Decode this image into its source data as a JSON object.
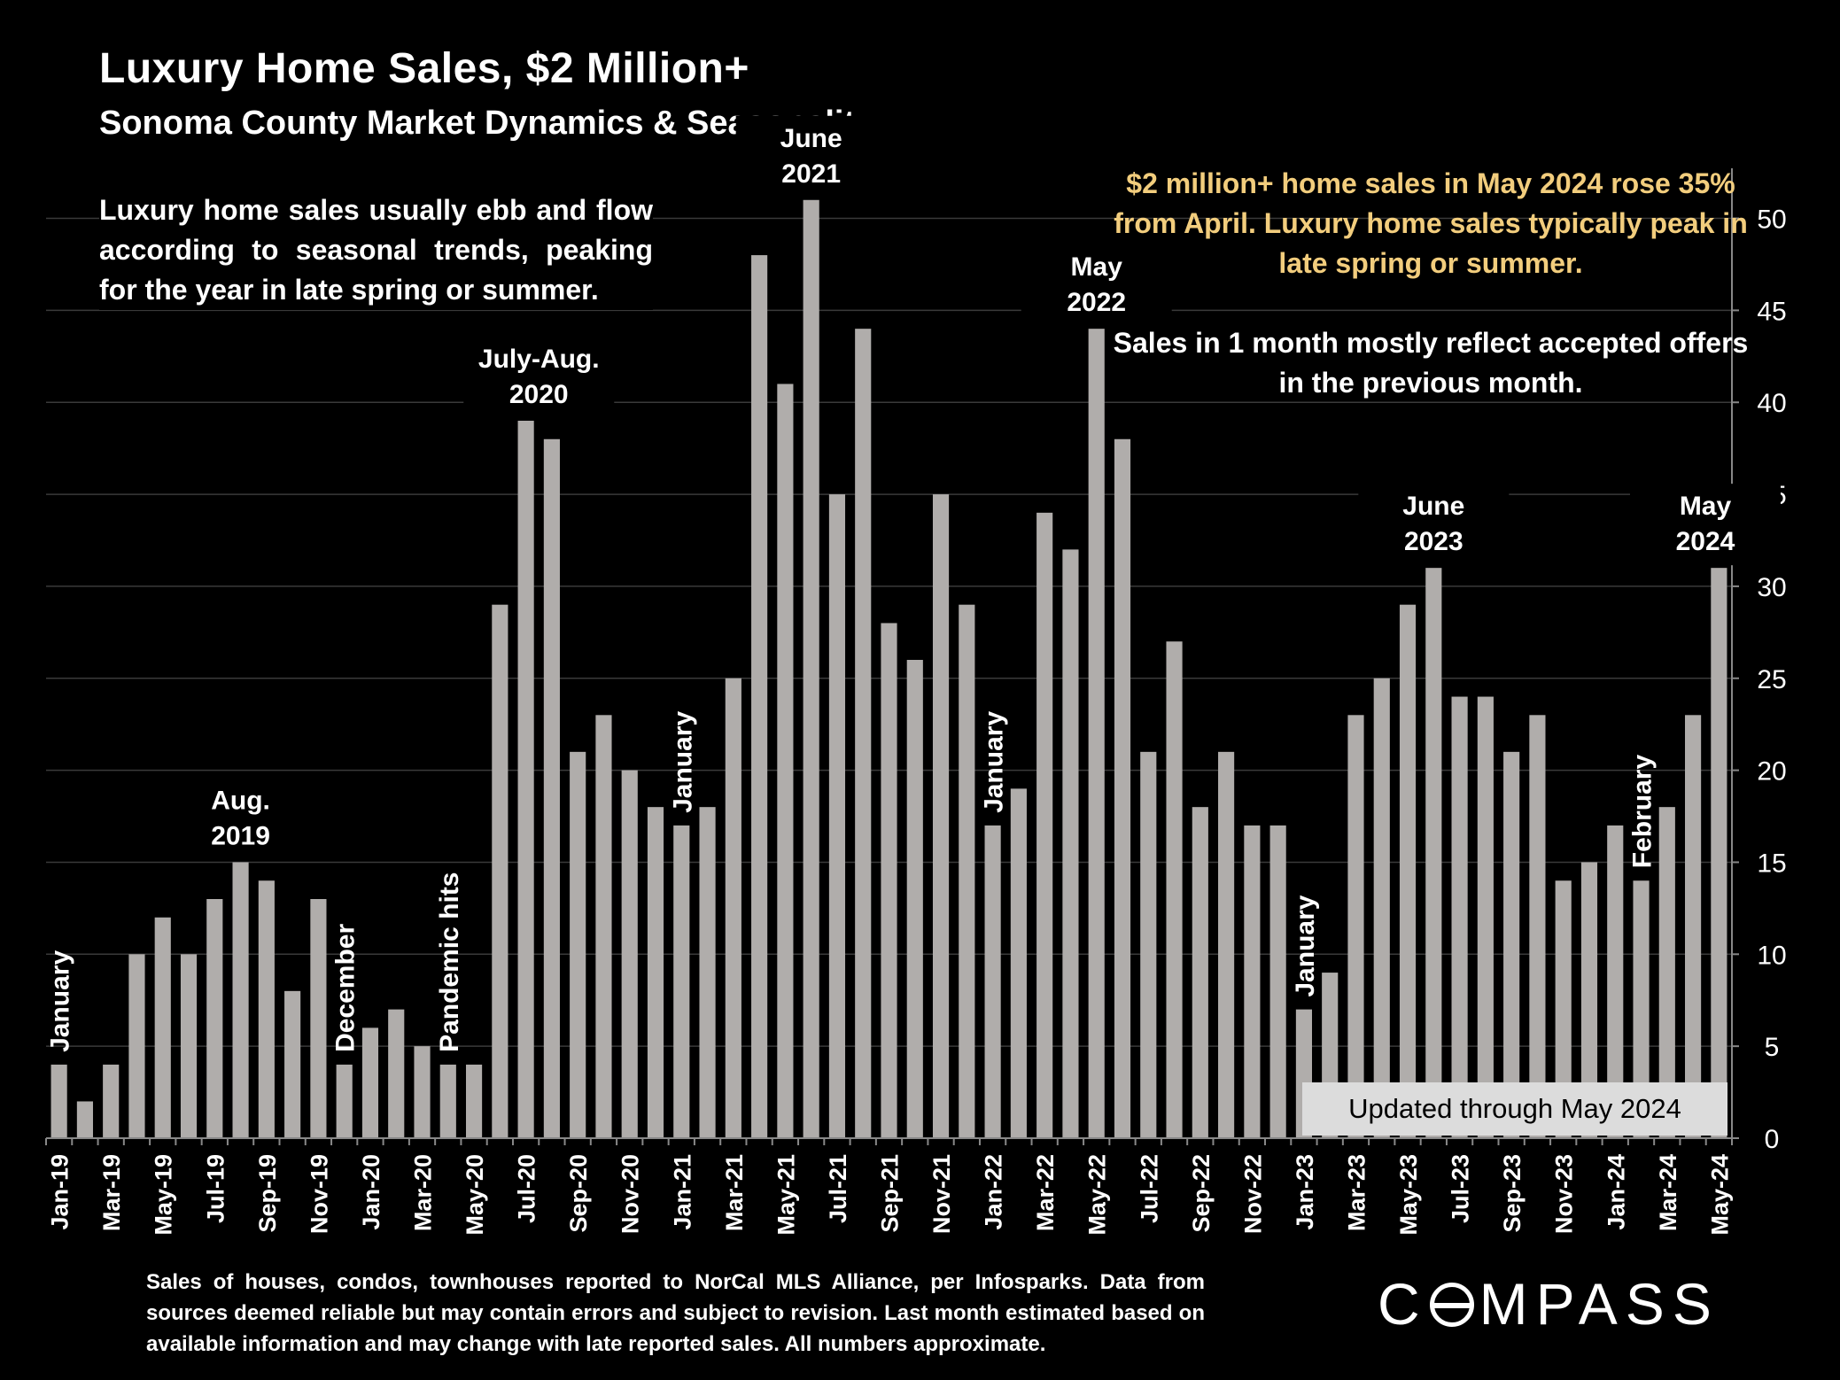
{
  "header": {
    "title": "Luxury Home Sales, $2 Million+",
    "subtitle": "Sonoma County Market Dynamics & Seasonality"
  },
  "description": "Luxury home sales usually ebb and flow according to seasonal trends, peaking for the year in late spring or summer.",
  "callout": {
    "highlight": "$2 million+ home sales in May 2024 rose 35% from April. Luxury home sales typically peak in late spring or summer.",
    "note": "Sales in 1 month mostly reflect accepted offers in the previous month."
  },
  "updated_badge": "Updated through May 2024",
  "footnote": "Sales of houses, condos, townhouses reported to NorCal MLS Alliance, per Infosparks. Data from sources deemed reliable but may contain errors and subject to revision. Last month estimated based on available information and may change with late reported sales. All numbers approximate.",
  "logo": {
    "text": "COMPASS",
    "icon": "compass-logo"
  },
  "colors": {
    "background": "#000000",
    "bar": "#b0adab",
    "highlight_text": "#f2cd7d",
    "grid": "#3a3a3a"
  },
  "chart_data": {
    "type": "bar",
    "categories": [
      "Jan-19",
      "Feb-19",
      "Mar-19",
      "Apr-19",
      "May-19",
      "Jun-19",
      "Jul-19",
      "Aug-19",
      "Sep-19",
      "Oct-19",
      "Nov-19",
      "Dec-19",
      "Jan-20",
      "Feb-20",
      "Mar-20",
      "Apr-20",
      "May-20",
      "Jun-20",
      "Jul-20",
      "Aug-20",
      "Sep-20",
      "Oct-20",
      "Nov-20",
      "Dec-20",
      "Jan-21",
      "Feb-21",
      "Mar-21",
      "Apr-21",
      "May-21",
      "Jun-21",
      "Jul-21",
      "Aug-21",
      "Sep-21",
      "Oct-21",
      "Nov-21",
      "Dec-21",
      "Jan-22",
      "Feb-22",
      "Mar-22",
      "Apr-22",
      "May-22",
      "Jun-22",
      "Jul-22",
      "Aug-22",
      "Sep-22",
      "Oct-22",
      "Nov-22",
      "Dec-22",
      "Jan-23",
      "Feb-23",
      "Mar-23",
      "Apr-23",
      "May-23",
      "Jun-23",
      "Jul-23",
      "Aug-23",
      "Sep-23",
      "Oct-23",
      "Nov-23",
      "Dec-23",
      "Jan-24",
      "Feb-24",
      "Mar-24",
      "Apr-24",
      "May-24"
    ],
    "x_tick_labels": [
      "Jan-19",
      "Mar-19",
      "May-19",
      "Jul-19",
      "Sep-19",
      "Nov-19",
      "Jan-20",
      "Mar-20",
      "May-20",
      "Jul-20",
      "Sep-20",
      "Nov-20",
      "Jan-21",
      "Mar-21",
      "May-21",
      "Jul-21",
      "Sep-21",
      "Nov-21",
      "Jan-22",
      "Mar-22",
      "May-22",
      "Jul-22",
      "Sep-22",
      "Nov-22",
      "Jan-23",
      "Mar-23",
      "May-23",
      "Jul-23",
      "Sep-23",
      "Nov-23",
      "Jan-24",
      "Mar-24",
      "May-24"
    ],
    "values": [
      4,
      2,
      4,
      10,
      12,
      10,
      13,
      15,
      14,
      8,
      13,
      4,
      6,
      7,
      5,
      4,
      4,
      29,
      39,
      38,
      21,
      23,
      20,
      18,
      17,
      18,
      25,
      48,
      41,
      51,
      35,
      44,
      28,
      26,
      35,
      29,
      17,
      19,
      34,
      32,
      44,
      38,
      21,
      27,
      18,
      21,
      17,
      17,
      7,
      9,
      23,
      25,
      29,
      31,
      24,
      24,
      21,
      23,
      14,
      15,
      17,
      14,
      18,
      23,
      31
    ],
    "ylim": [
      0,
      52
    ],
    "yticks": [
      0,
      5,
      10,
      15,
      20,
      25,
      30,
      35,
      40,
      45,
      50
    ],
    "y_axis_side": "right",
    "grid": true,
    "annotations": [
      {
        "text": "January",
        "index": 0,
        "rotated": true
      },
      {
        "text": "Aug.\n2019",
        "index": 7,
        "rotated": false
      },
      {
        "text": "December",
        "index": 11,
        "rotated": true
      },
      {
        "text": "Pandemic hits",
        "index": 15,
        "rotated": true
      },
      {
        "text": "July-Aug.\n2020",
        "index": 18.5,
        "rotated": false
      },
      {
        "text": "January",
        "index": 24,
        "rotated": true
      },
      {
        "text": "June\n2021",
        "index": 29,
        "rotated": false
      },
      {
        "text": "January",
        "index": 36,
        "rotated": true
      },
      {
        "text": "May\n2022",
        "index": 40,
        "rotated": false
      },
      {
        "text": "January",
        "index": 48,
        "rotated": true
      },
      {
        "text": "June\n2023",
        "index": 53,
        "rotated": false
      },
      {
        "text": "February",
        "index": 61,
        "rotated": true
      },
      {
        "text": "May\n2024",
        "index": 64,
        "rotated": false
      }
    ]
  }
}
